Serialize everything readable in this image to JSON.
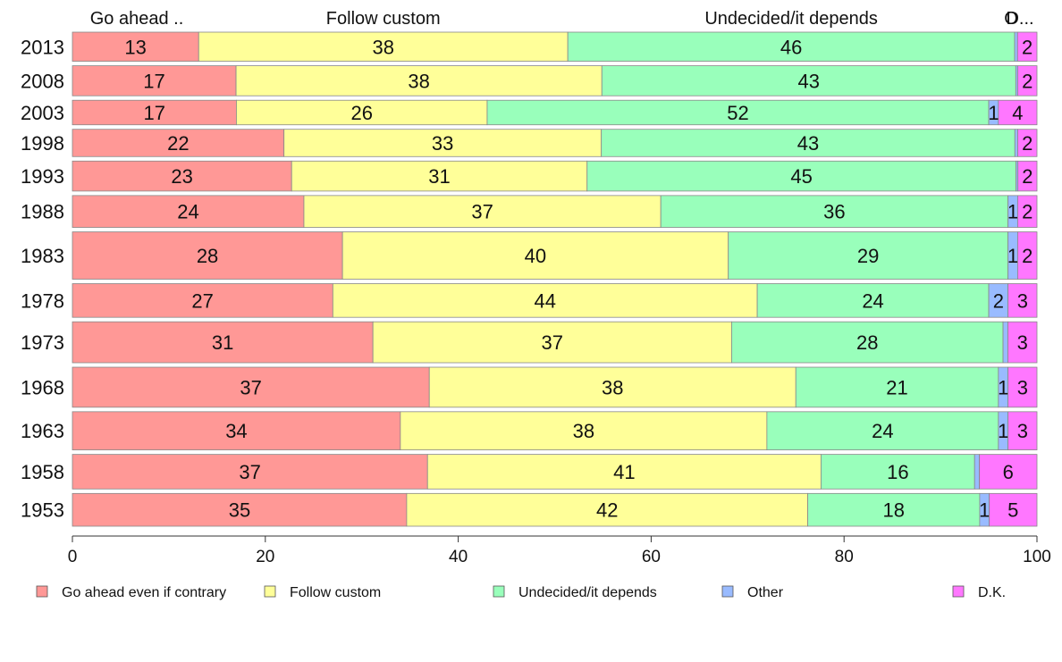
{
  "chart_data": {
    "type": "bar",
    "orientation": "horizontal",
    "stacked": true,
    "proportional_row_heights": true,
    "categories": [
      "2013",
      "2008",
      "2003",
      "1998",
      "1993",
      "1988",
      "1983",
      "1978",
      "1973",
      "1968",
      "1963",
      "1958",
      "1953"
    ],
    "series": [
      {
        "name": "Go ahead even if contrary",
        "color": "#ff9896",
        "values": [
          13,
          17,
          17,
          22,
          23,
          24,
          28,
          27,
          31,
          37,
          34,
          37,
          35
        ]
      },
      {
        "name": "Follow custom",
        "color": "#ffff99",
        "values": [
          38,
          38,
          26,
          33,
          31,
          37,
          40,
          44,
          37,
          38,
          38,
          41,
          42
        ]
      },
      {
        "name": "Undecided/it depends",
        "color": "#99ffbb",
        "values": [
          46,
          43,
          52,
          43,
          45,
          36,
          29,
          24,
          28,
          21,
          24,
          16,
          18
        ]
      },
      {
        "name": "Other",
        "color": "#99bbff",
        "values": [
          0.3,
          0.2,
          1,
          0.3,
          0.2,
          1,
          1,
          2,
          0.5,
          1,
          1,
          0.5,
          1
        ]
      },
      {
        "name": "D.K.",
        "color": "#ff77ff",
        "values": [
          2,
          2,
          4,
          2,
          2,
          2,
          2,
          3,
          3,
          3,
          3,
          6,
          5
        ]
      }
    ],
    "data_labels": [
      [
        "13",
        "38",
        "46",
        "",
        "2"
      ],
      [
        "17",
        "38",
        "43",
        "",
        "2"
      ],
      [
        "17",
        "26",
        "52",
        "1",
        "4"
      ],
      [
        "22",
        "33",
        "43",
        "",
        "2"
      ],
      [
        "23",
        "31",
        "45",
        "",
        "2"
      ],
      [
        "24",
        "37",
        "36",
        "1",
        "2"
      ],
      [
        "28",
        "40",
        "29",
        "1",
        "2"
      ],
      [
        "27",
        "44",
        "24",
        "2",
        "3"
      ],
      [
        "31",
        "37",
        "28",
        "",
        "3"
      ],
      [
        "37",
        "38",
        "21",
        "1",
        "3"
      ],
      [
        "34",
        "38",
        "24",
        "1",
        "3"
      ],
      [
        "37",
        "41",
        "16",
        "",
        "6"
      ],
      [
        "35",
        "42",
        "18",
        "1",
        "5"
      ]
    ],
    "top_labels": [
      "Go ahead ..",
      "Follow custom",
      "Undecided/it depends",
      "O",
      "D..."
    ],
    "xlim": [
      0,
      100
    ],
    "xticks": [
      0,
      20,
      40,
      60,
      80,
      100
    ],
    "xlabel": "",
    "ylabel": "",
    "title": "",
    "grid": false,
    "legend_position": "bottom"
  }
}
